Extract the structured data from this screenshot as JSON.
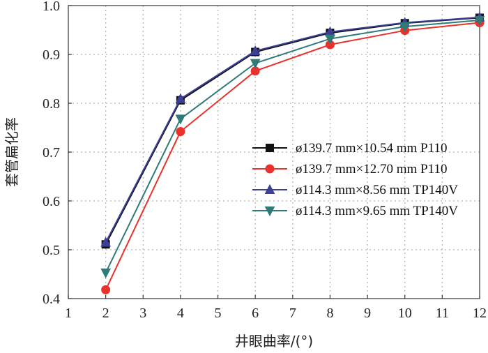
{
  "chart_data": {
    "type": "line",
    "title": "",
    "xlabel": "井眼曲率/(°)",
    "ylabel": "套管扁化率",
    "xlim": [
      1,
      12
    ],
    "ylim": [
      0.4,
      1.0
    ],
    "xticks": [
      1,
      2,
      3,
      4,
      5,
      6,
      7,
      8,
      9,
      10,
      11,
      12
    ],
    "yticks": [
      0.4,
      0.5,
      0.6,
      0.7,
      0.8,
      0.9,
      1.0
    ],
    "ytick_labels": [
      "0.4",
      "0.5",
      "0.6",
      "0.7",
      "0.8",
      "0.9",
      "1.0"
    ],
    "grid": true,
    "legend_position": "right",
    "x": [
      2,
      4,
      6,
      8,
      10,
      12
    ],
    "series": [
      {
        "name": "ø139.7 mm×10.54 mm P110",
        "color": "#111111",
        "marker": "square",
        "values": [
          0.511,
          0.806,
          0.905,
          0.944,
          0.964,
          0.975
        ]
      },
      {
        "name": "ø139.7 mm×12.70 mm P110",
        "color": "#e8322b",
        "marker": "circle",
        "values": [
          0.418,
          0.742,
          0.866,
          0.92,
          0.949,
          0.965
        ]
      },
      {
        "name": "ø114.3 mm×8.56 mm TP140V",
        "color": "#3c3f94",
        "marker": "triangle-up",
        "values": [
          0.515,
          0.809,
          0.907,
          0.946,
          0.965,
          0.976
        ]
      },
      {
        "name": "ø114.3 mm×9.65 mm TP140V",
        "color": "#2e7b78",
        "marker": "triangle-down",
        "values": [
          0.453,
          0.768,
          0.882,
          0.932,
          0.957,
          0.97
        ]
      }
    ]
  }
}
